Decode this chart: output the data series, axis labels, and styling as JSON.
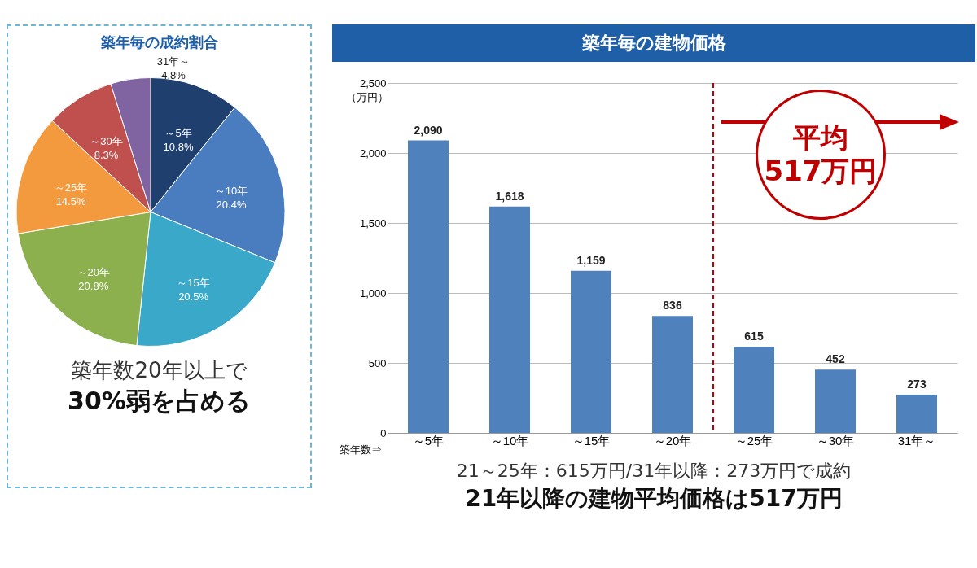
{
  "chart_data": [
    {
      "type": "pie",
      "title": "築年毎の成約割合",
      "categories": [
        "～5年",
        "～10年",
        "～15年",
        "～20年",
        "～25年",
        "～30年",
        "31年～"
      ],
      "values": [
        10.8,
        20.4,
        20.5,
        20.8,
        14.5,
        8.3,
        4.8
      ],
      "value_labels": [
        "10.8%",
        "20.4%",
        "20.5%",
        "20.8%",
        "14.5%",
        "8.3%",
        "4.8%"
      ],
      "colors": [
        "#1f3f6e",
        "#4a7cc0",
        "#3aa8c8",
        "#8db04e",
        "#f39a3e",
        "#c0504d",
        "#8064a2"
      ],
      "legend": false,
      "annotations": [
        "築年数20年以上で",
        "30%弱を占める"
      ]
    },
    {
      "type": "bar",
      "title": "築年毎の建物価格",
      "xlabel": "築年数⇒",
      "ylabel": "（万円）",
      "categories": [
        "～5年",
        "～10年",
        "～15年",
        "～20年",
        "～25年",
        "～30年",
        "31年～"
      ],
      "values": [
        2090,
        1618,
        1159,
        836,
        615,
        452,
        273
      ],
      "value_labels": [
        "2,090",
        "1,618",
        "1,159",
        "836",
        "615",
        "452",
        "273"
      ],
      "color": "#4f81bd",
      "ylim": [
        0,
        2500
      ],
      "yticks": [
        0,
        {
          "value": 500,
          "label": "500"
        },
        {
          "value": 1000,
          "label": "1,000"
        },
        {
          "value": 1500,
          "label": "1,500"
        },
        {
          "value": 2000,
          "label": "2,000"
        },
        {
          "value": 2500,
          "label": "2,500"
        }
      ],
      "grid": "y",
      "ref_lines": [
        {
          "axis": "x",
          "value": "～25年",
          "color": "#c00000",
          "line_style": "dashed"
        }
      ],
      "annotations": [
        "平均\n517万円",
        "21～25年：615万円/31年以降：273万円で成約",
        "21年以降の建物平均価格は517万円"
      ]
    }
  ]
}
